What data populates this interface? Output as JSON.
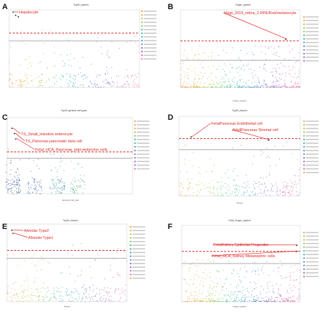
{
  "figure": {
    "panels": [
      {
        "id": "A",
        "title": "Top30_tissues",
        "xlabel": "",
        "ylabel": "",
        "annotations": [
          {
            "text": "Hepatocyte"
          }
        ]
      },
      {
        "id": "B",
        "title": "Organ_system",
        "xlabel": "Organ_system",
        "ylabel": "",
        "annotations": [
          {
            "text": "Voigt_2019_retina_2 RPE/Rod/melanocyte"
          }
        ]
      },
      {
        "id": "C",
        "title": "Top30 general cell types",
        "xlabel": "General_cell_type",
        "ylabel": "",
        "annotations": [
          {
            "text": "TS_Small_intestine enterocyte"
          },
          {
            "text": "TS_Pancreas pancreatic beta cell"
          },
          {
            "text": "Fetal_HCA_Pancreas_Islet endocrine cells"
          }
        ]
      },
      {
        "id": "D",
        "title": "Top30_tissues",
        "xlabel": "Tissue",
        "ylabel": "",
        "annotations": [
          {
            "text": "FetalPancreas Endothelial cell"
          },
          {
            "text": "AdultPancreas Stromal cell"
          }
        ]
      },
      {
        "id": "E",
        "title": "Top30_tissues",
        "xlabel": "Tissue",
        "ylabel": "",
        "annotations": [
          {
            "text": "Alveolar Type2"
          },
          {
            "text": "Alveolar Type1"
          }
        ]
      },
      {
        "id": "F",
        "title": "Fetal_Organ_system",
        "xlabel": "Organ_system",
        "ylabel": "",
        "annotations": [
          {
            "text": "FetalKidney Epithelial Progenitor"
          },
          {
            "text": "Fetal_HCA_Kidney Metanephric cells"
          }
        ]
      }
    ]
  },
  "colors": {
    "threshold_red": "#d42a2a",
    "threshold_black": "#333333",
    "annotation_red": "#e02020",
    "palette": [
      "#f28a2e",
      "#e0a326",
      "#c6b424",
      "#9dbd2c",
      "#5fbf48",
      "#2fb57c",
      "#22a7a3",
      "#2694bf",
      "#3b7fc6",
      "#5a6cc2",
      "#7a5bb8",
      "#9b50ad",
      "#c24fa0",
      "#e15e8c"
    ]
  },
  "chart_data": [
    {
      "panel": "A",
      "type": "scatter",
      "title": "Top30_tissues",
      "xlabel": "",
      "ylabel": "",
      "threshold_lines": {
        "red_dashed": 0.7,
        "black_solid": 0.6
      },
      "highlight_points": [
        {
          "label": "Hepatocyte",
          "x": 0.03,
          "y": 0.97
        },
        {
          "label": "Hepatocyte",
          "x": 0.05,
          "y": 0.93
        },
        {
          "label": "Hepatocyte",
          "x": 0.07,
          "y": 0.91
        }
      ],
      "legend_position": "right",
      "legend_entries": 14
    },
    {
      "panel": "B",
      "type": "scatter",
      "title": "Organ_system",
      "xlabel": "Organ_system",
      "ylabel": "",
      "threshold_lines": {
        "red_dashed": 0.6,
        "black_solid": 0.35
      },
      "highlight_points": [
        {
          "label": "Voigt_2019_retina_2 RPE/Rod/melanocyte",
          "x": 0.88,
          "y": 0.62
        }
      ],
      "legend_position": "right",
      "legend_entries": 13
    },
    {
      "panel": "C",
      "type": "scatter",
      "title": "Top30 general cell types",
      "xlabel": "General_cell_type",
      "ylabel": "",
      "threshold_lines": {
        "red_dashed": 0.55,
        "black_solid": 0.47
      },
      "highlight_points": [
        {
          "label": "TS_Small_intestine enterocyte",
          "x": 0.04,
          "y": 0.86
        },
        {
          "label": "TS_Pancreas pancreatic beta cell",
          "x": 0.06,
          "y": 0.79
        },
        {
          "label": "Fetal_HCA_Pancreas_Islet endocrine cells",
          "x": 0.07,
          "y": 0.72
        }
      ],
      "legend_position": "right",
      "legend_entries": 14
    },
    {
      "panel": "D",
      "type": "scatter",
      "title": "Top30_tissues",
      "xlabel": "Tissue",
      "ylabel": "",
      "threshold_lines": {
        "red_dashed": 0.72,
        "black_solid": 0.58
      },
      "highlight_points": [
        {
          "label": "FetalPancreas Endothelial cell",
          "x": 0.1,
          "y": 0.74
        },
        {
          "label": "AdultPancreas Stromal cell",
          "x": 0.74,
          "y": 0.7
        }
      ],
      "legend_position": "right",
      "legend_entries": 15
    },
    {
      "panel": "E",
      "type": "scatter",
      "title": "Top30_tissues",
      "xlabel": "Tissue",
      "ylabel": "",
      "threshold_lines": {
        "red_dashed": 0.66,
        "black_solid": 0.56
      },
      "highlight_points": [
        {
          "label": "Alveolar Type2",
          "x": 0.04,
          "y": 0.92
        },
        {
          "label": "Alveolar Type1",
          "x": 0.05,
          "y": 0.88
        }
      ],
      "legend_position": "right",
      "legend_entries": 15
    },
    {
      "panel": "F",
      "type": "scatter",
      "title": "Fetal_Organ_system",
      "xlabel": "Organ_system",
      "ylabel": "",
      "threshold_lines": {
        "red_dashed": 0.66,
        "black_solid": 0.5
      },
      "highlight_points": [
        {
          "label": "FetalKidney Epithelial Progenitor",
          "x": 0.97,
          "y": 0.74
        },
        {
          "label": "Fetal_HCA_Kidney Metanephric cells",
          "x": 0.97,
          "y": 0.66
        }
      ],
      "legend_position": "right",
      "legend_entries": 13
    }
  ]
}
